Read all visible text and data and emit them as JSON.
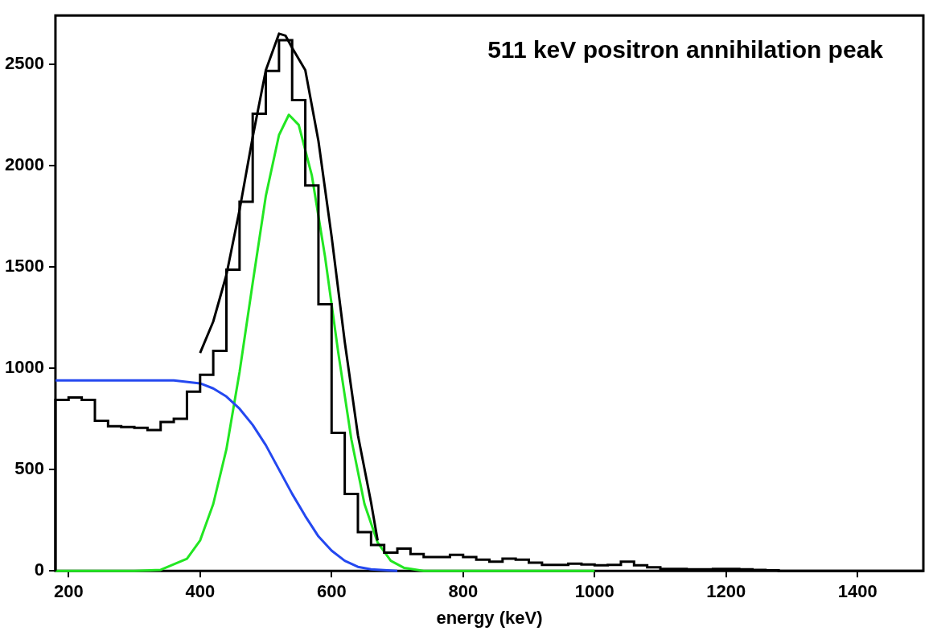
{
  "chart_data": {
    "type": "histogram",
    "title": "511 keV positron annihilation peak",
    "xlabel": "energy (keV)",
    "color": "#000000",
    "bins": [
      180,
      200,
      220,
      240,
      260,
      280,
      300,
      320,
      340,
      360,
      380,
      400,
      420,
      440,
      460,
      480,
      500,
      520,
      540,
      560,
      580,
      600,
      620,
      640,
      660,
      680,
      700,
      720,
      740,
      760,
      780,
      800,
      820,
      840,
      860,
      880,
      900,
      920,
      940,
      960,
      980,
      1000,
      1020,
      1040,
      1060,
      1080,
      1100,
      1120,
      1140,
      1160,
      1180,
      1200,
      1220,
      1240,
      1260,
      1280,
      1300,
      1320,
      1340,
      1360,
      1380,
      1400,
      1420,
      1440,
      1460,
      1480,
      1500
    ],
    "values": [
      843,
      855,
      843,
      740,
      714,
      710,
      706,
      695,
      734,
      750,
      884,
      967,
      1085,
      1486,
      1821,
      2255,
      2466,
      2618,
      2322,
      1901,
      1315,
      681,
      379,
      191,
      128,
      90,
      110,
      83,
      68,
      68,
      79,
      68,
      55,
      45,
      60,
      55,
      40,
      30,
      30,
      35,
      32,
      28,
      30,
      45,
      28,
      18,
      10,
      10,
      8,
      8,
      10,
      10,
      8,
      5,
      3,
      0,
      0,
      0,
      0,
      0,
      0,
      0,
      0,
      0,
      0,
      0
    ],
    "series": [
      {
        "type": "line",
        "color": "#000000",
        "x": [
          400,
          420,
          440,
          460,
          480,
          500,
          520,
          530,
          540,
          560,
          580,
          600,
          620,
          640,
          660,
          670
        ],
        "values": [
          1075,
          1230,
          1460,
          1780,
          2140,
          2470,
          2650,
          2640,
          2580,
          2470,
          2120,
          1650,
          1130,
          670,
          338,
          150
        ]
      },
      {
        "type": "line",
        "color": "#2448f0",
        "x": [
          180,
          360,
          400,
          420,
          440,
          460,
          480,
          500,
          520,
          540,
          560,
          580,
          600,
          620,
          640,
          660,
          700
        ],
        "values": [
          940,
          940,
          925,
          900,
          860,
          800,
          720,
          620,
          500,
          380,
          270,
          170,
          100,
          50,
          20,
          8,
          0
        ]
      },
      {
        "type": "line",
        "color": "#22e622",
        "x": [
          180,
          300,
          340,
          380,
          400,
          420,
          440,
          460,
          480,
          500,
          520,
          535,
          550,
          570,
          590,
          610,
          630,
          650,
          670,
          690,
          710,
          740,
          1000
        ],
        "values": [
          0,
          0,
          5,
          60,
          150,
          330,
          600,
          980,
          1420,
          1850,
          2150,
          2250,
          2200,
          1950,
          1550,
          1080,
          650,
          330,
          140,
          50,
          15,
          0,
          0
        ]
      }
    ],
    "xlim": [
      180,
      1500
    ],
    "xticks": [
      200,
      400,
      600,
      800,
      1000,
      1200,
      1400
    ],
    "ylim": [
      0,
      2740
    ],
    "yticks": [
      0,
      500,
      1000,
      1500,
      2000,
      2500
    ],
    "grid": false,
    "legend": false
  }
}
